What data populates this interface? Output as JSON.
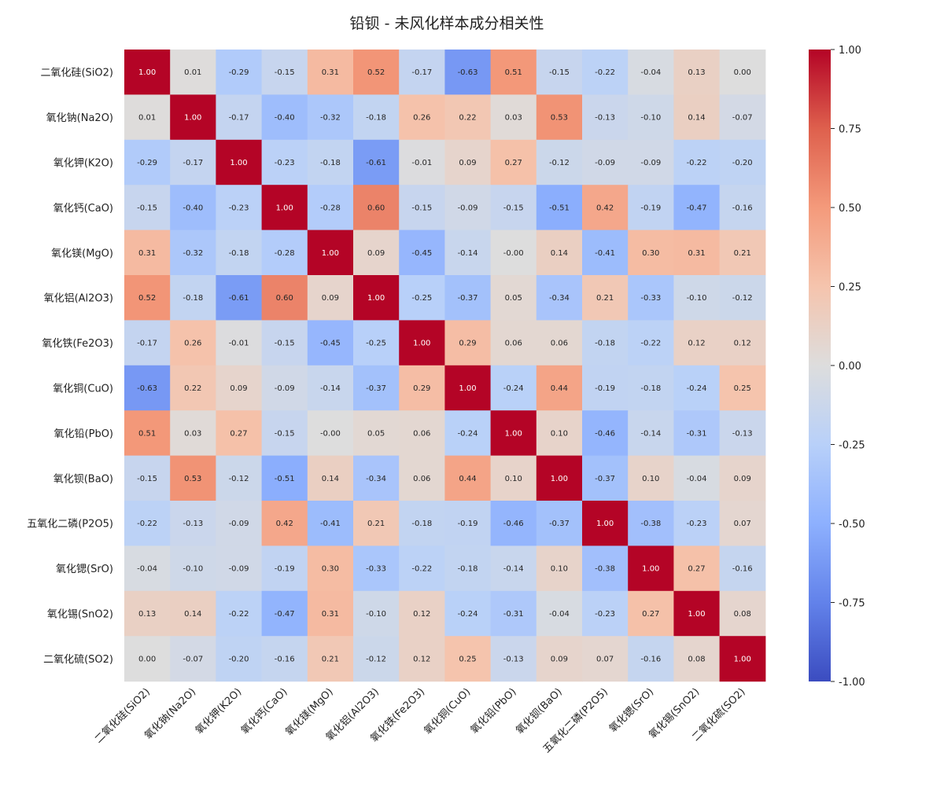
{
  "chart_data": {
    "type": "heatmap",
    "title": "铅钡 - 未风化样本成分相关性",
    "labels": [
      "二氧化硅(SiO2)",
      "氧化钠(Na2O)",
      "氧化钾(K2O)",
      "氧化钙(CaO)",
      "氧化镁(MgO)",
      "氧化铝(Al2O3)",
      "氧化铁(Fe2O3)",
      "氧化铜(CuO)",
      "氧化铅(PbO)",
      "氧化钡(BaO)",
      "五氧化二磷(P2O5)",
      "氧化锶(SrO)",
      "氧化锡(SnO2)",
      "二氧化硫(SO2)"
    ],
    "values": [
      [
        "1.00",
        "0.01",
        "-0.29",
        "-0.15",
        "0.31",
        "0.52",
        "-0.17",
        "-0.63",
        "0.51",
        "-0.15",
        "-0.22",
        "-0.04",
        "0.13",
        "0.00"
      ],
      [
        "0.01",
        "1.00",
        "-0.17",
        "-0.40",
        "-0.32",
        "-0.18",
        "0.26",
        "0.22",
        "0.03",
        "0.53",
        "-0.13",
        "-0.10",
        "0.14",
        "-0.07"
      ],
      [
        "-0.29",
        "-0.17",
        "1.00",
        "-0.23",
        "-0.18",
        "-0.61",
        "-0.01",
        "0.09",
        "0.27",
        "-0.12",
        "-0.09",
        "-0.09",
        "-0.22",
        "-0.20"
      ],
      [
        "-0.15",
        "-0.40",
        "-0.23",
        "1.00",
        "-0.28",
        "0.60",
        "-0.15",
        "-0.09",
        "-0.15",
        "-0.51",
        "0.42",
        "-0.19",
        "-0.47",
        "-0.16"
      ],
      [
        "0.31",
        "-0.32",
        "-0.18",
        "-0.28",
        "1.00",
        "0.09",
        "-0.45",
        "-0.14",
        "-0.00",
        "0.14",
        "-0.41",
        "0.30",
        "0.31",
        "0.21"
      ],
      [
        "0.52",
        "-0.18",
        "-0.61",
        "0.60",
        "0.09",
        "1.00",
        "-0.25",
        "-0.37",
        "0.05",
        "-0.34",
        "0.21",
        "-0.33",
        "-0.10",
        "-0.12"
      ],
      [
        "-0.17",
        "0.26",
        "-0.01",
        "-0.15",
        "-0.45",
        "-0.25",
        "1.00",
        "0.29",
        "0.06",
        "0.06",
        "-0.18",
        "-0.22",
        "0.12",
        "0.12"
      ],
      [
        "-0.63",
        "0.22",
        "0.09",
        "-0.09",
        "-0.14",
        "-0.37",
        "0.29",
        "1.00",
        "-0.24",
        "0.44",
        "-0.19",
        "-0.18",
        "-0.24",
        "0.25"
      ],
      [
        "0.51",
        "0.03",
        "0.27",
        "-0.15",
        "-0.00",
        "0.05",
        "0.06",
        "-0.24",
        "1.00",
        "0.10",
        "-0.46",
        "-0.14",
        "-0.31",
        "-0.13"
      ],
      [
        "-0.15",
        "0.53",
        "-0.12",
        "-0.51",
        "0.14",
        "-0.34",
        "0.06",
        "0.44",
        "0.10",
        "1.00",
        "-0.37",
        "0.10",
        "-0.04",
        "0.09"
      ],
      [
        "-0.22",
        "-0.13",
        "-0.09",
        "0.42",
        "-0.41",
        "0.21",
        "-0.18",
        "-0.19",
        "-0.46",
        "-0.37",
        "1.00",
        "-0.38",
        "-0.23",
        "0.07"
      ],
      [
        "-0.04",
        "-0.10",
        "-0.09",
        "-0.19",
        "0.30",
        "-0.33",
        "-0.22",
        "-0.18",
        "-0.14",
        "0.10",
        "-0.38",
        "1.00",
        "0.27",
        "-0.16"
      ],
      [
        "0.13",
        "0.14",
        "-0.22",
        "-0.47",
        "0.31",
        "-0.10",
        "0.12",
        "-0.24",
        "-0.31",
        "-0.04",
        "-0.23",
        "0.27",
        "1.00",
        "0.08"
      ],
      [
        "0.00",
        "-0.07",
        "-0.20",
        "-0.16",
        "0.21",
        "-0.12",
        "0.12",
        "0.25",
        "-0.13",
        "0.09",
        "0.07",
        "-0.16",
        "0.08",
        "1.00"
      ]
    ],
    "colorbar": {
      "range": [
        -1,
        1
      ],
      "ticks": [
        "1.00",
        "0.75",
        "0.50",
        "0.25",
        "0.00",
        "-0.25",
        "-0.50",
        "-0.75",
        "-1.00"
      ],
      "colormap": "coolwarm",
      "low_color": "#3b4cc0",
      "mid_color": "#dddddd",
      "high_color": "#b40426"
    },
    "grid": false
  }
}
